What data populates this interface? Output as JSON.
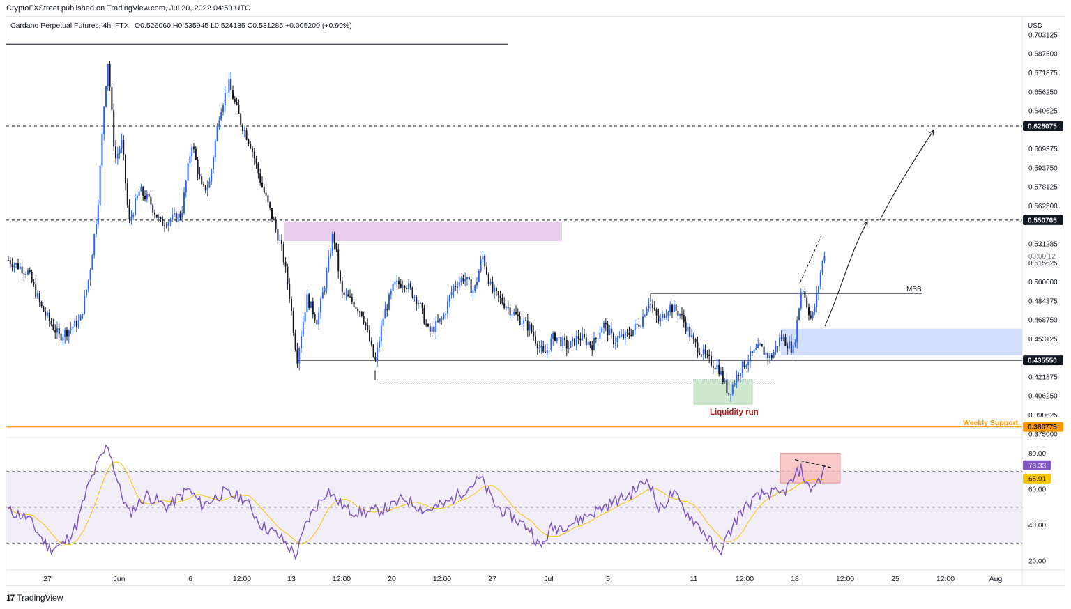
{
  "publisher": "CryptoFXStreet published on TradingView.com, Jul 20, 2022 04:59 UTC",
  "header": {
    "symbol": "Cardano Perpetual Futures, 4h, FTX",
    "ohlc": "O0.526060 H0.535945 L0.524135 C0.531285 +0.005200 (+0.99%)"
  },
  "footer": {
    "logo_text": "TradingView",
    "logo_mark": "17"
  },
  "colors": {
    "up": "#2962ff",
    "down": "#131722",
    "rsi": "#7e57c2",
    "rsi_ma": "#f5c400",
    "weekly_support": "#ff9800",
    "supply_zone": "#e1bee7",
    "demand_zone": "#c9d8fb",
    "liquidity_zone": "#c8e6c9",
    "rsi_band": "#ede7f6",
    "div_box": "#f7b6b6"
  },
  "chart_data": [
    {
      "type": "candlestick",
      "title": "Cardano Perpetual Futures, 4h, FTX",
      "currency": "USD",
      "y_ticks": [
        "0.703125",
        "0.687500",
        "0.671875",
        "0.656250",
        "0.640625",
        "0.609375",
        "0.593750",
        "0.578125",
        "0.562500",
        "0.515625",
        "0.500000",
        "0.484375",
        "0.468750",
        "0.453125",
        "0.421875",
        "0.406250",
        "0.390625",
        "0.375000"
      ],
      "ylim": [
        0.372,
        0.718
      ],
      "x_ticks": [
        "27",
        "Jun",
        "6",
        "12:00",
        "13",
        "12:00",
        "20",
        "12:00",
        "27",
        "Jul",
        "5",
        "11",
        "12:00",
        "18",
        "12:00",
        "25",
        "12:00",
        "Aug"
      ],
      "price_labels": [
        {
          "value": 0.628075,
          "text": "0.628075",
          "style": "dark"
        },
        {
          "value": 0.550765,
          "text": "0.550765",
          "style": "dark"
        },
        {
          "value": 0.531285,
          "text": "0.531285",
          "style": "plain"
        },
        {
          "value": 0.43555,
          "text": "0.435550",
          "style": "dark"
        },
        {
          "value": 0.380775,
          "text": "0.380775",
          "style": "orange"
        }
      ],
      "countdown": "03:00:12",
      "annotations": {
        "msb": "MSB",
        "liquidity": "Liquidity run",
        "weekly_support": "Weekly Support"
      },
      "levels": {
        "resistance_high": 0.628075,
        "resistance_mid": 0.550765,
        "range_low": 0.43555,
        "sweep_low": 0.4193,
        "msb": 0.4905,
        "weekly_support": 0.380775,
        "top_line": 0.6955
      },
      "zones": {
        "supply": [
          0.5335,
          0.5495
        ],
        "demand": [
          0.4397,
          0.4615
        ],
        "liquidity": [
          0.3995,
          0.4195
        ]
      },
      "anchors": {
        "start": 0.518,
        "low_may": 0.455,
        "rally_top": 0.653,
        "peak1": 0.682,
        "peak2": 0.663,
        "drop_end": 0.525,
        "jun13_low": 0.436,
        "bounce1": 0.541,
        "jun18_low": 0.433,
        "jun26_high": 0.522,
        "jul1_low": 0.439,
        "jul7_high": 0.485,
        "jul12_low": 0.408,
        "jul17_low": 0.437,
        "jul18_high": 0.498,
        "jul19_low": 0.468,
        "last_close": 0.531285
      }
    },
    {
      "type": "line",
      "title": "RSI",
      "y_ticks": [
        "80.00",
        "60.00",
        "40.00",
        "20.00"
      ],
      "ylim": [
        15,
        88
      ],
      "bands": [
        30,
        50,
        70
      ],
      "labels": {
        "rsi": "73.33",
        "ma": "65.91"
      },
      "rsi_value": 73.33,
      "ma_value": 65.91,
      "anchors": {
        "start": 48,
        "low_may": 27,
        "peak": 85,
        "jun_mid": 60,
        "drop": 23,
        "mid": 55,
        "jun26": 66,
        "jul1": 27,
        "jul7": 66,
        "jul12": 24,
        "jul18": 72,
        "jul19": 60,
        "last": 73.33
      }
    }
  ]
}
